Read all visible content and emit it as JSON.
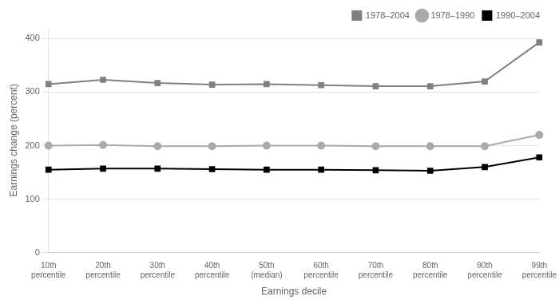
{
  "chart_data": {
    "type": "line",
    "categories": [
      "10th\npercentile",
      "20th\npercentile",
      "30th\npercentile",
      "40th\npercentile",
      "50th\n(median)",
      "60th\npercentile",
      "70th\npercentile",
      "80th\npercentile",
      "90th\npercentile",
      "99th\npercentile"
    ],
    "series": [
      {
        "name": "1978–2004",
        "color": "#808080",
        "marker": "square",
        "line_style": "solid",
        "values": [
          315,
          323,
          317,
          314,
          315,
          313,
          311,
          311,
          320,
          393
        ]
      },
      {
        "name": "1978–1990",
        "color": "#aaaaaa",
        "marker": "circle",
        "line_style": "solid",
        "values": [
          200,
          201,
          199,
          199,
          200,
          200,
          199,
          199,
          199,
          220
        ]
      },
      {
        "name": "1990–2004",
        "color": "#000000",
        "marker": "square",
        "line_style": "solid",
        "values": [
          155,
          157,
          157,
          156,
          155,
          155,
          154,
          153,
          160,
          178
        ]
      }
    ],
    "ylabel": "Earnings change (percent)",
    "xlabel": "Earnings decile",
    "ylim": [
      0,
      420
    ],
    "yticks": [
      0,
      100,
      200,
      300,
      400
    ],
    "grid": true,
    "legend": "upper right"
  }
}
